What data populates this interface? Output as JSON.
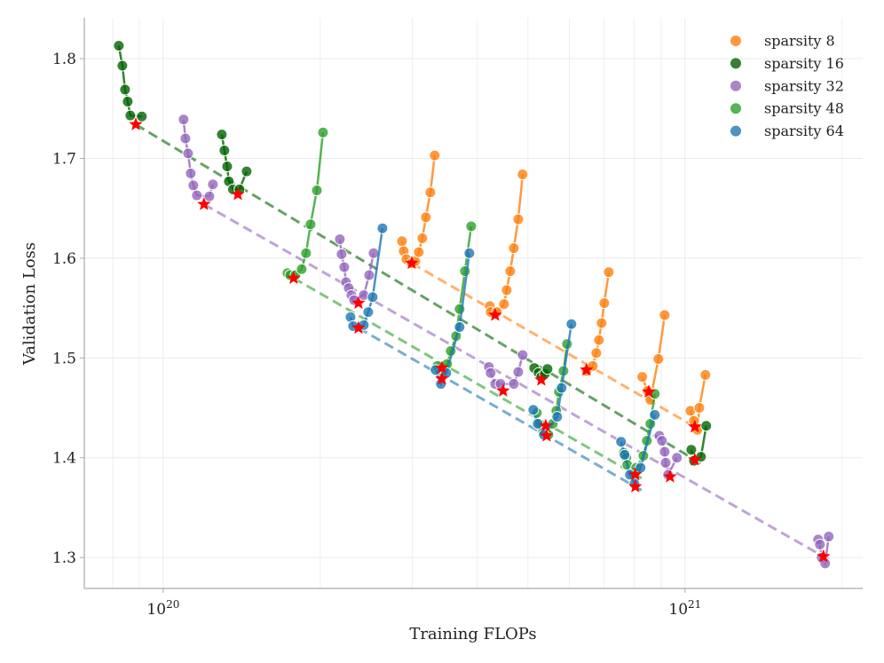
{
  "chart_data": {
    "type": "scatter",
    "title": "",
    "xlabel": "Training FLOPs",
    "ylabel": "Validation Loss",
    "xscale": "log",
    "xlim": [
      7.06e+19,
      2.19e+21
    ],
    "ylim": [
      1.269,
      1.841
    ],
    "grid": true,
    "legend_position": "top-right",
    "x_ticks": [
      {
        "value": 1e+20,
        "base": "10",
        "exp": "20"
      },
      {
        "value": 1e+21,
        "base": "10",
        "exp": "21"
      }
    ],
    "y_ticks": [
      {
        "value": 1.3,
        "label": "1.3"
      },
      {
        "value": 1.4,
        "label": "1.4"
      },
      {
        "value": 1.5,
        "label": "1.5"
      },
      {
        "value": 1.6,
        "label": "1.6"
      },
      {
        "value": 1.7,
        "label": "1.7"
      },
      {
        "value": 1.8,
        "label": "1.8"
      }
    ],
    "optimum_marker": "red-star",
    "fit_lines": "dashed",
    "series": [
      {
        "name": "sparsity 8",
        "color": "#ff7f0e",
        "runs": [
          {
            "points": [
              [
                2.868e+20,
                1.617
              ],
              [
                2.89e+20,
                1.607
              ],
              [
                2.924e+20,
                1.599
              ],
              [
                2.994e+20,
                1.595
              ],
              [
                3.041e+20,
                1.597
              ],
              [
                3.088e+20,
                1.606
              ],
              [
                3.137e+20,
                1.62
              ],
              [
                3.187e+20,
                1.641
              ],
              [
                3.25e+20,
                1.666
              ],
              [
                3.314e+20,
                1.703
              ]
            ],
            "best": [
              2.994e+20,
              1.595
            ]
          },
          {
            "points": [
              [
                4.225e+20,
                1.552
              ],
              [
                4.242e+20,
                1.546
              ],
              [
                4.36e+20,
                1.546
              ],
              [
                4.499e+20,
                1.554
              ],
              [
                4.552e+20,
                1.568
              ],
              [
                4.624e+20,
                1.587
              ],
              [
                4.697e+20,
                1.61
              ],
              [
                4.79e+20,
                1.639
              ],
              [
                4.884e+20,
                1.684
              ]
            ],
            "best": [
              4.326e+20,
              1.543
            ]
          },
          {
            "points": [
              [
                6.474e+20,
                1.487
              ],
              [
                6.654e+20,
                1.492
              ],
              [
                6.76e+20,
                1.505
              ],
              [
                6.839e+20,
                1.518
              ],
              [
                6.92e+20,
                1.535
              ],
              [
                7.002e+20,
                1.555
              ],
              [
                7.141e+20,
                1.586
              ]
            ],
            "best": [
              6.474e+20,
              1.488
            ]
          },
          {
            "points": [
              [
                8.28e+20,
                1.481
              ],
              [
                8.48e+20,
                1.467
              ],
              [
                8.58e+20,
                1.458
              ],
              [
                8.89e+20,
                1.499
              ],
              [
                9.14e+20,
                1.543
              ]
            ],
            "best": [
              8.52e+20,
              1.466
            ]
          },
          {
            "points": [
              [
                1.024e+21,
                1.447
              ],
              [
                1.04e+21,
                1.437
              ],
              [
                1.056e+21,
                1.428
              ],
              [
                1.065e+21,
                1.45
              ],
              [
                1.094e+21,
                1.483
              ]
            ],
            "best": [
              1.044e+21,
              1.431
            ]
          }
        ]
      },
      {
        "name": "sparsity 16",
        "color": "#006400",
        "runs": [
          {
            "points": [
              [
                8.22e+19,
                1.813
              ],
              [
                8.35e+19,
                1.793
              ],
              [
                8.45e+19,
                1.769
              ],
              [
                8.55e+19,
                1.757
              ],
              [
                8.65e+19,
                1.743
              ],
              [
                9.1e+19,
                1.742
              ]
            ],
            "best": [
              8.86e+19,
              1.734
            ]
          },
          {
            "points": [
              [
                1.295e+20,
                1.724
              ],
              [
                1.31e+20,
                1.708
              ],
              [
                1.326e+20,
                1.692
              ],
              [
                1.336e+20,
                1.677
              ],
              [
                1.36e+20,
                1.669
              ],
              [
                1.4e+20,
                1.669
              ],
              [
                1.445e+20,
                1.687
              ]
            ],
            "best": [
              1.39e+20,
              1.664
            ]
          },
          {
            "points": [
              [
                5.14e+20,
                1.49
              ],
              [
                5.24e+20,
                1.485
              ],
              [
                5.302e+20,
                1.481
              ],
              [
                5.386e+20,
                1.484
              ],
              [
                5.45e+20,
                1.489
              ]
            ],
            "best": [
              5.302e+20,
              1.478
            ]
          },
          {
            "points": [
              [
                1.028e+21,
                1.408
              ],
              [
                1.04e+21,
                1.397
              ],
              [
                1.073e+21,
                1.401
              ],
              [
                1.098e+21,
                1.432
              ]
            ],
            "best": [
              1.044e+21,
              1.398
            ]
          }
        ]
      },
      {
        "name": "sparsity 32",
        "color": "#9467bd",
        "runs": [
          {
            "points": [
              [
                1.094e+20,
                1.739
              ],
              [
                1.103e+20,
                1.72
              ],
              [
                1.116e+20,
                1.705
              ],
              [
                1.129e+20,
                1.685
              ],
              [
                1.142e+20,
                1.673
              ],
              [
                1.16e+20,
                1.663
              ],
              [
                1.226e+20,
                1.662
              ],
              [
                1.245e+20,
                1.674
              ]
            ],
            "best": [
              1.197e+20,
              1.654
            ]
          },
          {
            "points": [
              [
                2.18e+20,
                1.619
              ],
              [
                2.197e+20,
                1.604
              ],
              [
                2.223e+20,
                1.591
              ],
              [
                2.24e+20,
                1.576
              ],
              [
                2.267e+20,
                1.57
              ],
              [
                2.294e+20,
                1.563
              ],
              [
                2.321e+20,
                1.558
              ],
              [
                2.423e+20,
                1.563
              ],
              [
                2.481e+20,
                1.583
              ],
              [
                2.53e+20,
                1.605
              ]
            ],
            "best": [
              2.367e+20,
              1.555
            ]
          },
          {
            "points": [
              [
                4.208e+20,
                1.491
              ],
              [
                4.242e+20,
                1.485
              ],
              [
                4.326e+20,
                1.474
              ],
              [
                4.43e+20,
                1.474
              ],
              [
                4.697e+20,
                1.474
              ],
              [
                4.79e+20,
                1.486
              ],
              [
                4.884e+20,
                1.503
              ]
            ],
            "best": [
              4.481e+20,
              1.467
            ]
          },
          {
            "points": [
              [
                8.93e+20,
                1.422
              ],
              [
                9.03e+20,
                1.417
              ],
              [
                9.14e+20,
                1.406
              ],
              [
                9.18e+20,
                1.395
              ],
              [
                9.28e+20,
                1.383
              ],
              [
                9.65e+20,
                1.4
              ]
            ],
            "best": [
              9.36e+20,
              1.381
            ]
          },
          {
            "points": [
              [
                1.799e+21,
                1.318
              ],
              [
                1.813e+21,
                1.313
              ],
              [
                1.827e+21,
                1.3
              ],
              [
                1.856e+21,
                1.294
              ],
              [
                1.885e+21,
                1.321
              ]
            ],
            "best": [
              1.842e+21,
              1.301
            ]
          }
        ]
      },
      {
        "name": "sparsity 48",
        "color": "#2ca02c",
        "runs": [
          {
            "points": [
              [
                1.73e+20,
                1.585
              ],
              [
                1.751e+20,
                1.583
              ],
              [
                1.792e+20,
                1.583
              ],
              [
                1.842e+20,
                1.589
              ],
              [
                1.878e+20,
                1.605
              ],
              [
                1.916e+20,
                1.634
              ],
              [
                1.97e+20,
                1.668
              ],
              [
                2.024e+20,
                1.726
              ]
            ],
            "best": [
              1.778e+20,
              1.58
            ]
          },
          {
            "points": [
              [
                3.353e+20,
                1.492
              ],
              [
                3.42e+20,
                1.487
              ],
              [
                3.501e+20,
                1.494
              ],
              [
                3.556e+20,
                1.507
              ],
              [
                3.641e+20,
                1.522
              ],
              [
                3.698e+20,
                1.549
              ],
              [
                3.786e+20,
                1.587
              ],
              [
                3.892e+20,
                1.632
              ]
            ],
            "best": [
              3.42e+20,
              1.49
            ]
          },
          {
            "points": [
              [
                5.2e+20,
                1.445
              ],
              [
                5.26e+20,
                1.434
              ],
              [
                5.344e+20,
                1.426
              ],
              [
                5.471e+20,
                1.423
              ],
              [
                5.579e+20,
                1.434
              ],
              [
                5.667e+20,
                1.447
              ],
              [
                5.734e+20,
                1.466
              ],
              [
                5.848e+20,
                1.487
              ],
              [
                5.94e+20,
                1.514
              ]
            ],
            "best": [
              5.408e+20,
              1.432
            ]
          },
          {
            "points": [
              [
                7.629e+20,
                1.405
              ],
              [
                7.719e+20,
                1.4
              ],
              [
                7.749e+20,
                1.393
              ],
              [
                7.933e+20,
                1.385
              ],
              [
                8.06e+20,
                1.39
              ],
              [
                8.32e+20,
                1.402
              ],
              [
                8.45e+20,
                1.417
              ],
              [
                8.58e+20,
                1.434
              ],
              [
                8.75e+20,
                1.464
              ]
            ],
            "best": [
              8.03e+20,
              1.383
            ]
          }
        ]
      },
      {
        "name": "sparsity 64",
        "color": "#1f77b4",
        "runs": [
          {
            "points": [
              [
                2.285e+20,
                1.541
              ],
              [
                2.312e+20,
                1.532
              ],
              [
                2.423e+20,
                1.533
              ],
              [
                2.471e+20,
                1.546
              ],
              [
                2.52e+20,
                1.561
              ],
              [
                2.631e+20,
                1.63
              ]
            ],
            "best": [
              2.367e+20,
              1.53
            ]
          },
          {
            "points": [
              [
                3.327e+20,
                1.488
              ],
              [
                3.405e+20,
                1.474
              ],
              [
                3.487e+20,
                1.485
              ],
              [
                3.698e+20,
                1.531
              ],
              [
                3.861e+20,
                1.605
              ]
            ],
            "best": [
              3.42e+20,
              1.479
            ]
          },
          {
            "points": [
              [
                5.119e+20,
                1.448
              ],
              [
                5.22e+20,
                1.434
              ],
              [
                5.364e+20,
                1.423
              ],
              [
                5.689e+20,
                1.441
              ],
              [
                5.801e+20,
                1.47
              ],
              [
                6.057e+20,
                1.534
              ]
            ],
            "best": [
              5.429e+20,
              1.422
            ]
          },
          {
            "points": [
              [
                7.54e+20,
                1.416
              ],
              [
                7.659e+20,
                1.403
              ],
              [
                7.84e+20,
                1.383
              ],
              [
                8e+20,
                1.374
              ],
              [
                8.22e+20,
                1.39
              ],
              [
                8.75e+20,
                1.443
              ]
            ],
            "best": [
              8.03e+20,
              1.371
            ]
          }
        ]
      }
    ]
  }
}
